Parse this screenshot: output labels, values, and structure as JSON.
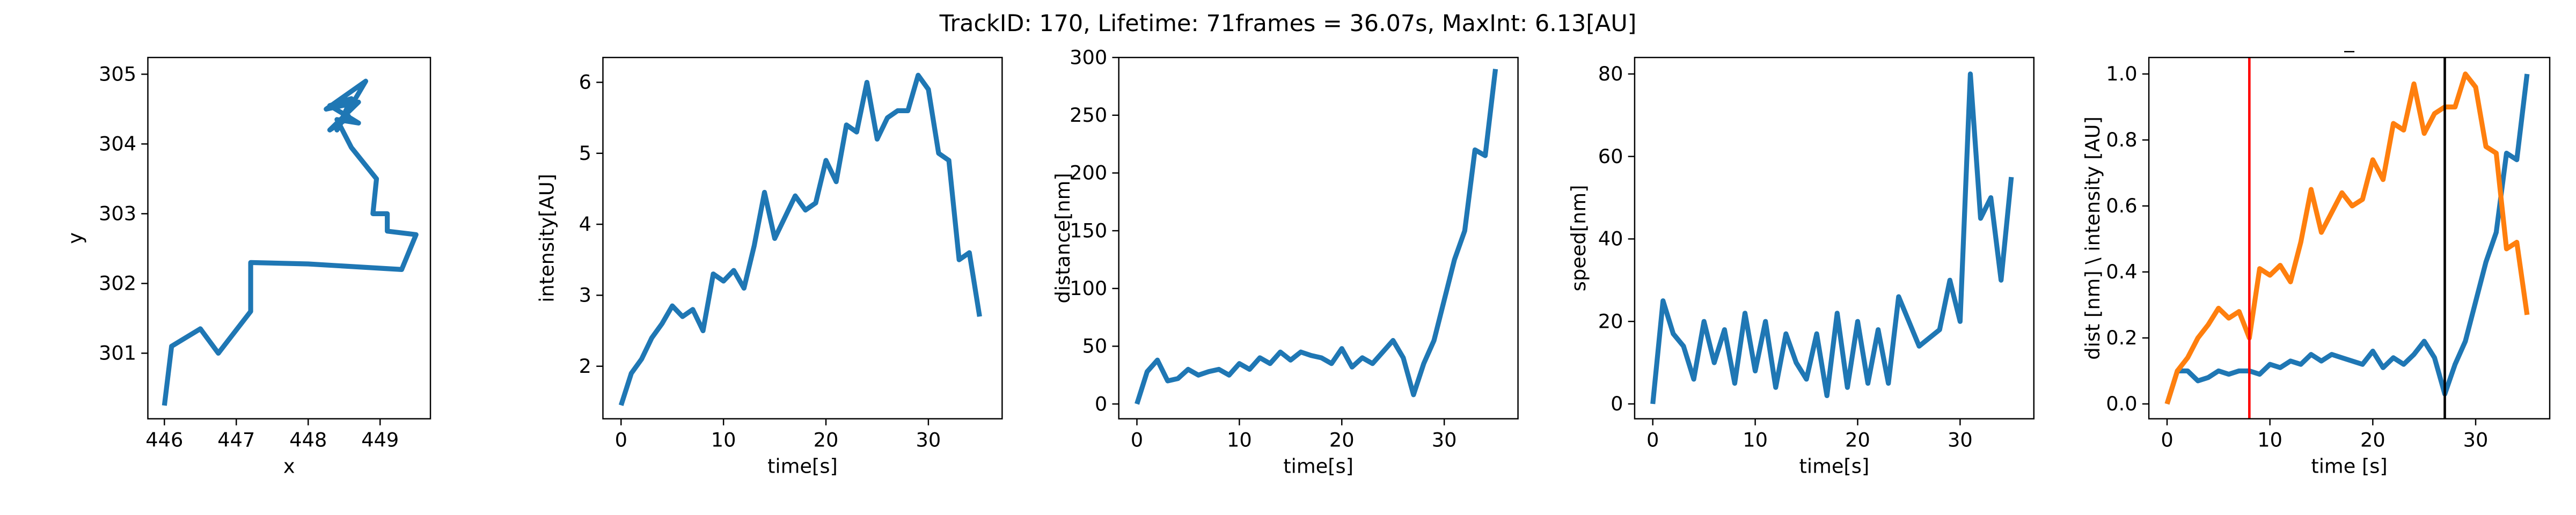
{
  "title": "TrackID: 170, Lifetime: 71frames = 36.07s, MaxInt: 6.13[AU]",
  "chart_data": [
    {
      "type": "line",
      "xlabel": "x",
      "ylabel": "y",
      "xlim": [
        445.77,
        449.7
      ],
      "ylim": [
        300.06,
        305.24
      ],
      "xticks": [
        446,
        447,
        448,
        449
      ],
      "yticks": [
        301,
        302,
        303,
        304,
        305
      ],
      "series": [
        {
          "color": "#1f77b4",
          "x": [
            446.0,
            446.1,
            446.5,
            446.75,
            447.2,
            447.2,
            448.0,
            449.3,
            449.5,
            449.1,
            449.1,
            448.9,
            448.95,
            448.6,
            448.4,
            448.7,
            448.3,
            448.6,
            448.4,
            448.8,
            448.25,
            448.7,
            448.3,
            448.6
          ],
          "values": [
            300.25,
            301.1,
            301.35,
            301.0,
            301.6,
            302.3,
            302.28,
            302.2,
            302.7,
            302.75,
            303.0,
            303.0,
            303.5,
            303.95,
            304.35,
            304.3,
            304.55,
            304.65,
            304.2,
            304.9,
            304.5,
            304.6,
            304.2,
            304.4
          ]
        }
      ]
    },
    {
      "type": "line",
      "xlabel": "time[s]",
      "ylabel": "intensity[AU]",
      "xlim": [
        -1.77,
        37.2
      ],
      "ylim": [
        1.26,
        6.35
      ],
      "xticks": [
        0,
        10,
        20,
        30
      ],
      "yticks": [
        2,
        3,
        4,
        5,
        6
      ],
      "x": [
        0,
        1,
        2,
        3,
        4,
        5,
        6,
        7,
        8,
        9,
        10,
        11,
        12,
        13,
        14,
        15,
        16,
        17,
        18,
        19,
        20,
        21,
        22,
        23,
        24,
        25,
        26,
        27,
        28,
        29,
        30,
        31,
        32,
        33,
        34,
        35
      ],
      "series": [
        {
          "color": "#1f77b4",
          "values": [
            1.45,
            1.9,
            2.1,
            2.4,
            2.6,
            2.85,
            2.7,
            2.8,
            2.5,
            3.3,
            3.2,
            3.35,
            3.1,
            3.7,
            4.45,
            3.8,
            4.1,
            4.4,
            4.2,
            4.3,
            4.9,
            4.6,
            5.4,
            5.3,
            6.0,
            5.2,
            5.5,
            5.6,
            5.6,
            6.1,
            5.9,
            5.0,
            4.9,
            3.5,
            3.6,
            2.7
          ]
        }
      ]
    },
    {
      "type": "line",
      "xlabel": "time[s]",
      "ylabel": "distance[nm]",
      "xlim": [
        -1.77,
        37.2
      ],
      "ylim": [
        -12.8,
        300
      ],
      "xticks": [
        0,
        10,
        20,
        30
      ],
      "yticks": [
        0,
        50,
        100,
        150,
        200,
        250,
        300
      ],
      "x": [
        0,
        1,
        2,
        3,
        4,
        5,
        6,
        7,
        8,
        9,
        10,
        11,
        12,
        13,
        14,
        15,
        16,
        17,
        18,
        19,
        20,
        21,
        22,
        23,
        24,
        25,
        26,
        27,
        28,
        29,
        30,
        31,
        32,
        33,
        34,
        35
      ],
      "series": [
        {
          "color": "#1f77b4",
          "values": [
            0,
            28,
            38,
            20,
            22,
            30,
            25,
            28,
            30,
            25,
            35,
            30,
            40,
            35,
            45,
            38,
            45,
            42,
            40,
            35,
            48,
            32,
            40,
            35,
            45,
            55,
            40,
            8,
            35,
            55,
            90,
            125,
            150,
            220,
            215,
            290
          ]
        }
      ]
    },
    {
      "type": "line",
      "xlabel": "time[s]",
      "ylabel": "speed[nm]",
      "xlim": [
        -1.77,
        37.2
      ],
      "ylim": [
        -3.6,
        84
      ],
      "xticks": [
        0,
        10,
        20,
        30
      ],
      "yticks": [
        0,
        20,
        40,
        60,
        80
      ],
      "x": [
        0,
        1,
        2,
        3,
        4,
        5,
        6,
        7,
        8,
        9,
        10,
        11,
        12,
        13,
        14,
        15,
        16,
        17,
        18,
        19,
        20,
        21,
        22,
        23,
        24,
        25,
        26,
        27,
        28,
        29,
        30,
        31,
        32,
        33,
        34,
        35
      ],
      "series": [
        {
          "color": "#1f77b4",
          "values": [
            0,
            25,
            17,
            14,
            6,
            20,
            10,
            18,
            5,
            22,
            8,
            20,
            4,
            17,
            10,
            6,
            17,
            2,
            22,
            4,
            20,
            5,
            18,
            5,
            26,
            20,
            14,
            16,
            18,
            30,
            20,
            80,
            45,
            50,
            30,
            55
          ]
        }
      ]
    },
    {
      "type": "line",
      "title": "_",
      "xlabel": "time [s]",
      "ylabel": "dist [nm] \\ intensity [AU]",
      "xlim": [
        -1.77,
        37.2
      ],
      "ylim": [
        -0.045,
        1.05
      ],
      "xticks": [
        0,
        10,
        20,
        30
      ],
      "yticks": [
        {
          "value": 0,
          "label": "0.0"
        },
        {
          "value": 0.2,
          "label": "0.2"
        },
        {
          "value": 0.4,
          "label": "0.4"
        },
        {
          "value": 0.6,
          "label": "0.6"
        },
        {
          "value": 0.8,
          "label": "0.8"
        },
        {
          "value": 1,
          "label": "1.0"
        }
      ],
      "vlines": [
        {
          "x": 8,
          "color": "red"
        },
        {
          "x": 27,
          "color": "black"
        }
      ],
      "x": [
        0,
        1,
        2,
        3,
        4,
        5,
        6,
        7,
        8,
        9,
        10,
        11,
        12,
        13,
        14,
        15,
        16,
        17,
        18,
        19,
        20,
        21,
        22,
        23,
        24,
        25,
        26,
        27,
        28,
        29,
        30,
        31,
        32,
        33,
        34,
        35
      ],
      "series": [
        {
          "color": "#1f77b4",
          "values": [
            0,
            0.1,
            0.1,
            0.07,
            0.08,
            0.1,
            0.09,
            0.1,
            0.1,
            0.09,
            0.12,
            0.11,
            0.13,
            0.12,
            0.15,
            0.13,
            0.15,
            0.14,
            0.13,
            0.12,
            0.16,
            0.11,
            0.14,
            0.12,
            0.15,
            0.19,
            0.14,
            0.03,
            0.12,
            0.19,
            0.31,
            0.43,
            0.52,
            0.76,
            0.74,
            1.0
          ]
        },
        {
          "color": "#ff7f0e",
          "values": [
            0,
            0.1,
            0.14,
            0.2,
            0.24,
            0.29,
            0.26,
            0.28,
            0.2,
            0.41,
            0.39,
            0.42,
            0.37,
            0.49,
            0.65,
            0.52,
            0.58,
            0.64,
            0.6,
            0.62,
            0.74,
            0.68,
            0.85,
            0.83,
            0.97,
            0.82,
            0.88,
            0.9,
            0.9,
            1.0,
            0.96,
            0.78,
            0.76,
            0.47,
            0.49,
            0.27
          ]
        }
      ]
    }
  ]
}
